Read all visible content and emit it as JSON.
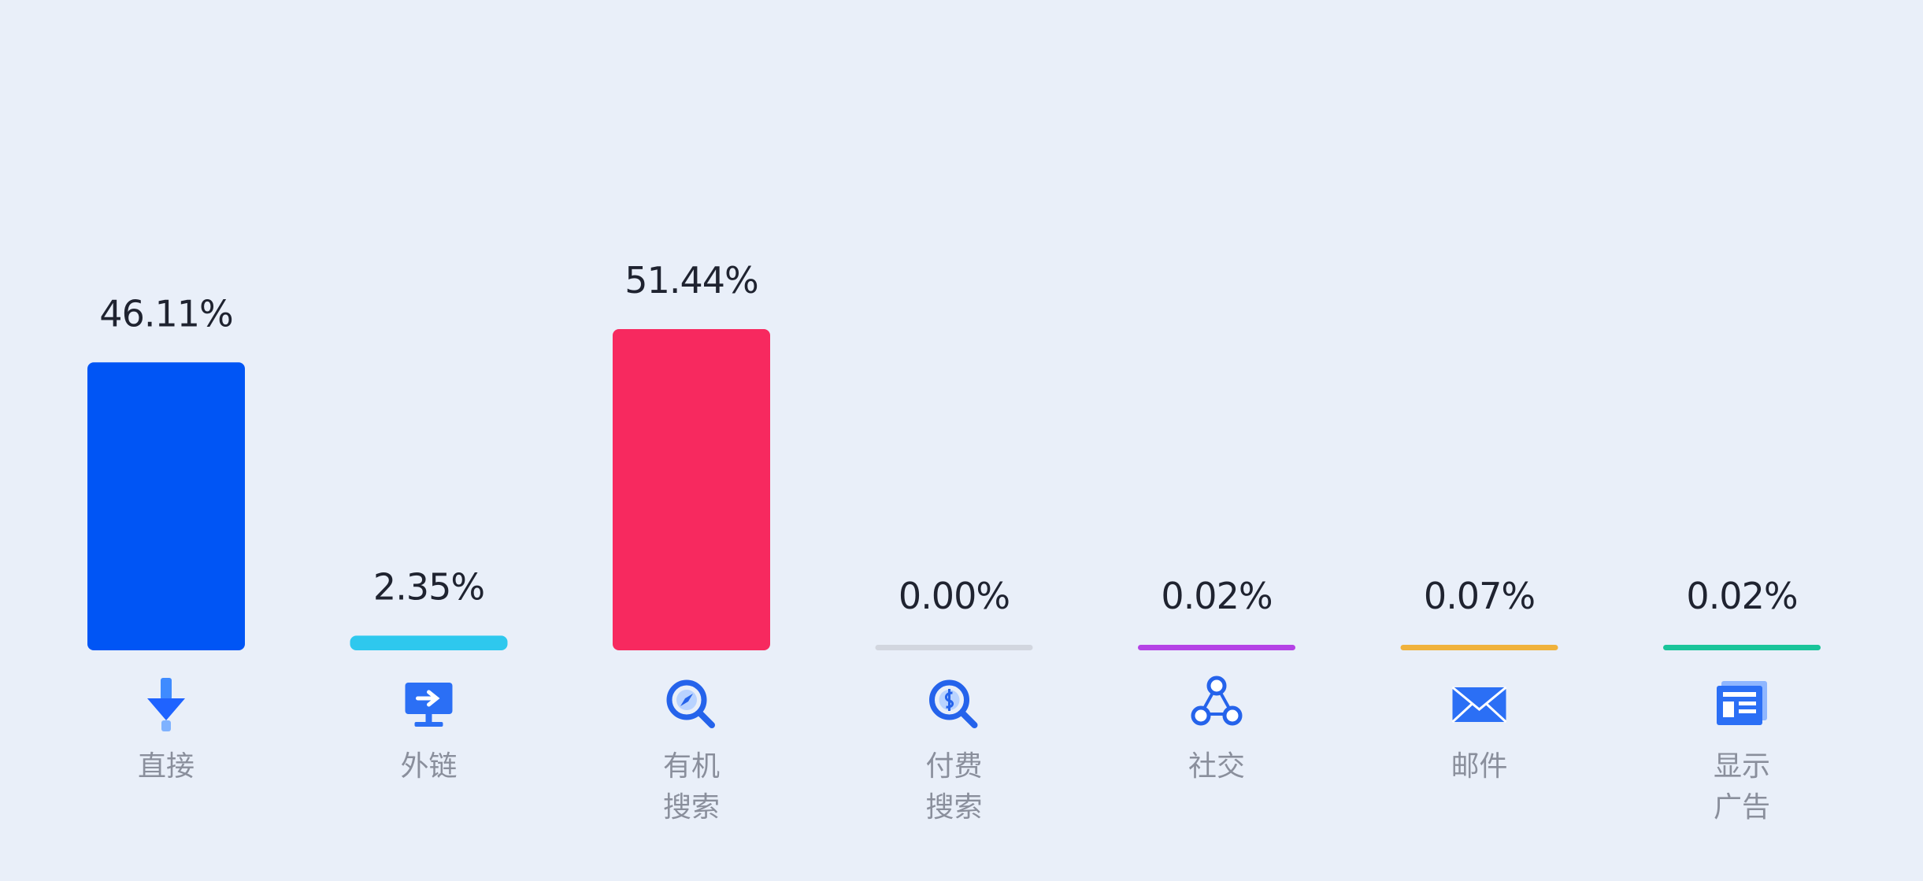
{
  "chart_data": {
    "type": "bar",
    "categories": [
      "直接",
      "外链",
      "有机\n搜索",
      "付费\n搜索",
      "社交",
      "邮件",
      "显示\n广告"
    ],
    "values": [
      46.11,
      2.35,
      51.44,
      0.0,
      0.02,
      0.07,
      0.02
    ],
    "value_labels": [
      "46.11%",
      "2.35%",
      "51.44%",
      "0.00%",
      "0.02%",
      "0.07%",
      "0.02%"
    ],
    "colors": [
      "#0055f5",
      "#2ec8ee",
      "#f7295f",
      "#d2d6df",
      "#b542e6",
      "#f0b23c",
      "#19c49a"
    ],
    "icons": [
      "download-arrow-icon",
      "monitor-link-icon",
      "search-compass-icon",
      "search-dollar-icon",
      "share-network-icon",
      "envelope-icon",
      "display-ad-icon"
    ],
    "ylim": [
      0,
      51.44
    ],
    "grid": false,
    "legend": "none"
  }
}
